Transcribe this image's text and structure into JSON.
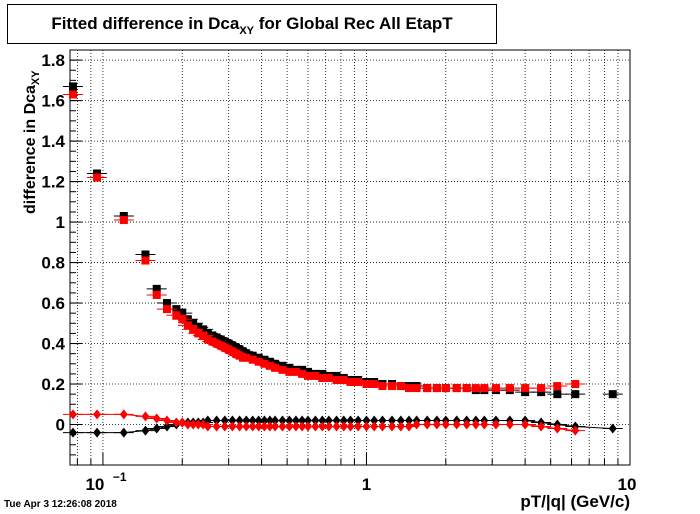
{
  "title": {
    "prefix": "Fitted difference in Dca",
    "sub": "XY",
    "suffix": " for Global Rec All EtapT"
  },
  "timestamp": "Tue Apr  3 12:26:08 2018",
  "chart_data": {
    "type": "scatter",
    "title": "Fitted difference in Dca_XY for Global Rec All EtapT",
    "xlabel": "pT/|q| (GeV/c)",
    "ylabel": "difference in Dca_XY",
    "xscale": "log",
    "xlim": [
      0.075,
      10
    ],
    "ylim": [
      -0.2,
      1.85
    ],
    "grid": true,
    "x_tick_labels": [
      "10^-1",
      "1",
      "10"
    ],
    "y_tick_labels": [
      "0",
      "0.2",
      "0.4",
      "0.6",
      "0.8",
      "1",
      "1.2",
      "1.4",
      "1.6",
      "1.8"
    ],
    "series": [
      {
        "color": "#000000",
        "marker": "square",
        "x": [
          0.077,
          0.095,
          0.12,
          0.145,
          0.16,
          0.175,
          0.19,
          0.2,
          0.21,
          0.22,
          0.23,
          0.24,
          0.25,
          0.26,
          0.27,
          0.28,
          0.29,
          0.3,
          0.31,
          0.32,
          0.33,
          0.34,
          0.35,
          0.37,
          0.39,
          0.41,
          0.43,
          0.45,
          0.48,
          0.51,
          0.54,
          0.57,
          0.6,
          0.64,
          0.68,
          0.72,
          0.77,
          0.82,
          0.87,
          0.93,
          1.0,
          1.07,
          1.15,
          1.25,
          1.35,
          1.45,
          1.55,
          1.7,
          1.85,
          2.0,
          2.2,
          2.4,
          2.6,
          2.8,
          3.1,
          3.5,
          4.0,
          4.6,
          5.3,
          6.2,
          8.6
        ],
        "y": [
          1.67,
          1.24,
          1.03,
          0.84,
          0.67,
          0.6,
          0.57,
          0.55,
          0.52,
          0.5,
          0.48,
          0.47,
          0.45,
          0.44,
          0.43,
          0.42,
          0.41,
          0.4,
          0.39,
          0.38,
          0.37,
          0.36,
          0.35,
          0.34,
          0.33,
          0.32,
          0.31,
          0.3,
          0.29,
          0.28,
          0.27,
          0.27,
          0.26,
          0.25,
          0.25,
          0.24,
          0.24,
          0.23,
          0.22,
          0.22,
          0.21,
          0.21,
          0.2,
          0.2,
          0.19,
          0.19,
          0.19,
          0.18,
          0.18,
          0.18,
          0.18,
          0.18,
          0.17,
          0.17,
          0.17,
          0.17,
          0.16,
          0.16,
          0.15,
          0.15,
          0.15
        ]
      },
      {
        "color": "#ff0000",
        "marker": "square",
        "x": [
          0.077,
          0.095,
          0.12,
          0.145,
          0.16,
          0.175,
          0.19,
          0.2,
          0.21,
          0.22,
          0.23,
          0.24,
          0.25,
          0.26,
          0.27,
          0.28,
          0.29,
          0.3,
          0.31,
          0.32,
          0.33,
          0.34,
          0.35,
          0.37,
          0.39,
          0.41,
          0.43,
          0.45,
          0.48,
          0.51,
          0.54,
          0.57,
          0.6,
          0.64,
          0.68,
          0.72,
          0.77,
          0.82,
          0.87,
          0.93,
          1.0,
          1.07,
          1.15,
          1.25,
          1.35,
          1.45,
          1.55,
          1.7,
          1.85,
          2.0,
          2.2,
          2.4,
          2.6,
          2.8,
          3.1,
          3.5,
          4.0,
          4.6,
          5.3,
          6.2
        ],
        "y": [
          1.63,
          1.22,
          1.01,
          0.81,
          0.64,
          0.57,
          0.54,
          0.52,
          0.49,
          0.47,
          0.45,
          0.44,
          0.42,
          0.41,
          0.4,
          0.39,
          0.38,
          0.37,
          0.36,
          0.35,
          0.34,
          0.33,
          0.33,
          0.32,
          0.31,
          0.3,
          0.29,
          0.28,
          0.27,
          0.26,
          0.26,
          0.25,
          0.24,
          0.24,
          0.23,
          0.23,
          0.22,
          0.22,
          0.21,
          0.21,
          0.2,
          0.2,
          0.19,
          0.19,
          0.19,
          0.18,
          0.18,
          0.18,
          0.18,
          0.18,
          0.18,
          0.18,
          0.18,
          0.18,
          0.18,
          0.18,
          0.18,
          0.18,
          0.19,
          0.2
        ]
      },
      {
        "color": "#000000",
        "marker": "diamond",
        "x": [
          0.077,
          0.095,
          0.12,
          0.145,
          0.16,
          0.175,
          0.19,
          0.2,
          0.21,
          0.22,
          0.23,
          0.24,
          0.25,
          0.27,
          0.29,
          0.31,
          0.33,
          0.35,
          0.37,
          0.39,
          0.41,
          0.43,
          0.45,
          0.48,
          0.51,
          0.54,
          0.57,
          0.6,
          0.64,
          0.68,
          0.72,
          0.77,
          0.82,
          0.87,
          0.93,
          1.0,
          1.07,
          1.15,
          1.25,
          1.35,
          1.45,
          1.55,
          1.7,
          1.85,
          2.0,
          2.2,
          2.4,
          2.6,
          2.8,
          3.1,
          3.5,
          4.0,
          4.6,
          5.3,
          6.2,
          8.6
        ],
        "y": [
          -0.04,
          -0.04,
          -0.04,
          -0.03,
          -0.02,
          -0.01,
          0.0,
          0.01,
          0.01,
          0.01,
          0.01,
          0.01,
          0.02,
          0.02,
          0.02,
          0.02,
          0.02,
          0.02,
          0.02,
          0.02,
          0.02,
          0.02,
          0.02,
          0.02,
          0.02,
          0.02,
          0.02,
          0.02,
          0.02,
          0.02,
          0.02,
          0.02,
          0.02,
          0.02,
          0.02,
          0.02,
          0.02,
          0.02,
          0.02,
          0.02,
          0.02,
          0.02,
          0.02,
          0.02,
          0.02,
          0.02,
          0.02,
          0.02,
          0.02,
          0.02,
          0.02,
          0.02,
          0.01,
          0.0,
          -0.01,
          -0.02
        ]
      },
      {
        "color": "#ff0000",
        "marker": "diamond",
        "x": [
          0.077,
          0.095,
          0.12,
          0.145,
          0.16,
          0.175,
          0.19,
          0.2,
          0.21,
          0.22,
          0.23,
          0.24,
          0.25,
          0.27,
          0.29,
          0.31,
          0.33,
          0.35,
          0.37,
          0.39,
          0.41,
          0.43,
          0.45,
          0.48,
          0.51,
          0.54,
          0.57,
          0.6,
          0.64,
          0.68,
          0.72,
          0.77,
          0.82,
          0.87,
          0.93,
          1.0,
          1.07,
          1.15,
          1.25,
          1.35,
          1.45,
          1.55,
          1.7,
          1.85,
          2.0,
          2.2,
          2.4,
          2.6,
          2.8,
          3.1,
          3.5,
          4.0,
          4.6,
          5.3,
          6.2
        ],
        "y": [
          0.05,
          0.05,
          0.05,
          0.04,
          0.03,
          0.02,
          0.01,
          0.01,
          0.0,
          0.0,
          0.0,
          0.0,
          -0.01,
          -0.01,
          -0.01,
          -0.01,
          -0.01,
          -0.01,
          -0.01,
          -0.01,
          -0.01,
          -0.01,
          -0.01,
          -0.01,
          -0.01,
          -0.01,
          -0.01,
          -0.01,
          -0.01,
          -0.01,
          -0.01,
          -0.01,
          -0.01,
          -0.01,
          -0.01,
          -0.01,
          -0.01,
          -0.01,
          -0.01,
          -0.01,
          -0.01,
          0.0,
          0.0,
          0.0,
          0.0,
          0.0,
          0.0,
          0.0,
          0.0,
          0.0,
          0.0,
          0.0,
          -0.01,
          -0.02,
          -0.03
        ]
      }
    ]
  }
}
